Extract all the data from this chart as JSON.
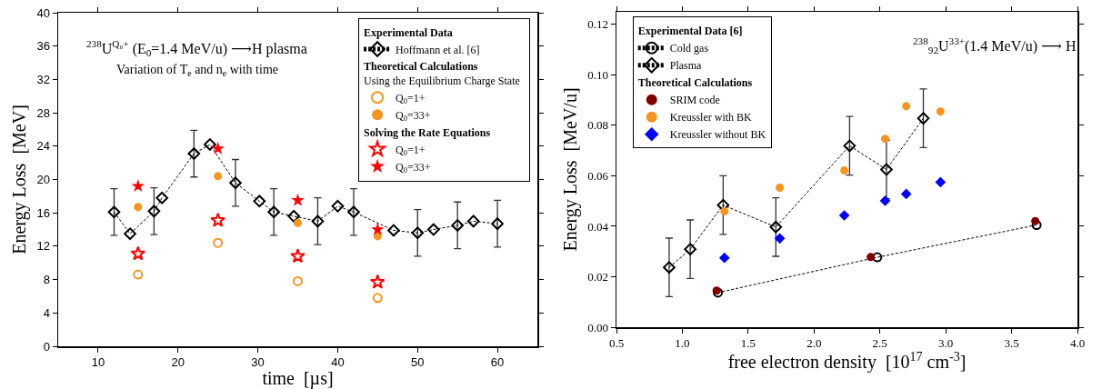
{
  "chart_data": [
    {
      "type": "scatter",
      "xlabel": "time  [µs]",
      "ylabel": "Energy Loss  [MeV]",
      "annotations": [
        "$^{238}$U$^{Q₀+}$ (E$_{0}$=1.4 MeV/u) ⟶H plasma",
        "Variation of T$_{e}$ and n$_{e}$ with time"
      ],
      "legend_title": [
        "Experimental Data",
        "Theoretical Calculations",
        "Using the Equilibrium Charge State",
        "Solving the Rate Equations"
      ],
      "xlim": [
        5,
        65
      ],
      "xticks": [
        10,
        20,
        30,
        40,
        50,
        60
      ],
      "ylim": [
        0,
        40
      ],
      "yticks": [
        0,
        4,
        8,
        12,
        16,
        20,
        24,
        28,
        32,
        36,
        40
      ],
      "grid": false,
      "legend": "top right",
      "series": [
        {
          "name": "Hoffmann et al. [6]",
          "type": "line",
          "marker": "diamond-open",
          "line_style": "dashed",
          "color": "#000000",
          "x": [
            12,
            14,
            17,
            18,
            22,
            24,
            27.2,
            30.2,
            32,
            34.5,
            37.5,
            40,
            42,
            47,
            50,
            52,
            55,
            57,
            60
          ],
          "values": [
            16.1,
            13.5,
            16.2,
            17.8,
            23.1,
            24.2,
            19.6,
            17.4,
            16.1,
            15.6,
            15.0,
            16.8,
            16.1,
            13.9,
            13.6,
            14.0,
            14.5,
            15.0,
            14.7
          ],
          "errors": [
            2.8,
            null,
            2.8,
            null,
            2.8,
            null,
            2.8,
            null,
            2.8,
            null,
            2.8,
            null,
            2.8,
            null,
            2.8,
            null,
            2.8,
            null,
            2.8
          ]
        },
        {
          "name": "Q$_{0}$=1+",
          "marker": "circle-open",
          "color": "#f7941d",
          "x": [
            15,
            25,
            35,
            45
          ],
          "values": [
            8.6,
            12.4,
            7.8,
            5.8
          ]
        },
        {
          "name": "Q$_{0}$=33+",
          "marker": "circle",
          "color": "#f7941d",
          "x": [
            15,
            25,
            35,
            45
          ],
          "values": [
            16.7,
            20.4,
            14.8,
            13.2
          ]
        },
        {
          "name": "Q$_{0}$=1+",
          "marker": "star-open",
          "color": "#ff0000",
          "x": [
            15,
            25,
            35,
            45
          ],
          "values": [
            11.1,
            15.1,
            10.8,
            7.7
          ]
        },
        {
          "name": "Q$_{0}$=33+",
          "marker": "star",
          "color": "#ff0000",
          "x": [
            15,
            25,
            35,
            45
          ],
          "values": [
            19.2,
            23.7,
            17.5,
            14.0
          ]
        }
      ]
    },
    {
      "type": "scatter",
      "xlabel": "free electron density  [10$^{17}$ cm$^{-3}$]",
      "ylabel": "Energy Loss  [MeV/u]",
      "annotations": [
        "$^{238}$$_{92}$U$^{33+}$(1.4 MeV/u) ⟶ H"
      ],
      "legend_title": [
        "Experimental Data [6]",
        "Theoretical Calculations"
      ],
      "xlim": [
        0.5,
        4.0
      ],
      "xticks": [
        {
          "value": 0.5,
          "label": "0.5"
        },
        {
          "value": 1,
          "label": "1.0"
        },
        {
          "value": 1.5,
          "label": "1.5"
        },
        {
          "value": 2,
          "label": "2.0"
        },
        {
          "value": 2.5,
          "label": "2.5"
        },
        {
          "value": 3,
          "label": "3.0"
        },
        {
          "value": 3.5,
          "label": "3.5"
        },
        {
          "value": 4,
          "label": "4.0"
        }
      ],
      "ylim": [
        0,
        0.125
      ],
      "yticks": [
        {
          "value": 0,
          "label": "0.00"
        },
        {
          "value": 0.02,
          "label": "0.02"
        },
        {
          "value": 0.04,
          "label": "0.04"
        },
        {
          "value": 0.06,
          "label": "0.06"
        },
        {
          "value": 0.08,
          "label": "0.08"
        },
        {
          "value": 0.1,
          "label": "0.10"
        },
        {
          "value": 0.12,
          "label": "0.12"
        }
      ],
      "grid": false,
      "legend": "top left",
      "series": [
        {
          "name": "Cold gas",
          "type": "line",
          "marker": "circle-open",
          "line_style": "dashed",
          "color": "#000000",
          "x": [
            1.27,
            2.48,
            3.69
          ],
          "values": [
            0.0137,
            0.0277,
            0.0405
          ]
        },
        {
          "name": "Plasma",
          "type": "line",
          "marker": "diamond-open",
          "line_style": "dashed",
          "color": "#000000",
          "x": [
            0.9,
            1.06,
            1.31,
            1.71,
            2.27,
            2.55,
            2.83
          ],
          "values": [
            0.0237,
            0.0309,
            0.0484,
            0.0397,
            0.0719,
            0.0625,
            0.0828
          ],
          "errors": [
            0.0116,
            0.0116,
            0.0116,
            0.0116,
            0.0116,
            0.0116,
            0.0116
          ]
        },
        {
          "name": "SRIM code",
          "marker": "circle",
          "color": "#800000",
          "x": [
            1.26,
            2.43,
            3.68
          ],
          "values": [
            0.0145,
            0.0278,
            0.0421
          ]
        },
        {
          "name": "Kreussler with BK",
          "marker": "circle",
          "color": "#f7941d",
          "x": [
            1.32,
            1.74,
            2.23,
            2.54,
            2.7,
            2.96
          ],
          "values": [
            0.0459,
            0.0553,
            0.0621,
            0.0747,
            0.0876,
            0.0855
          ]
        },
        {
          "name": "Kreussler without BK",
          "marker": "diamond",
          "color": "#0000ff",
          "x": [
            1.32,
            1.74,
            2.23,
            2.54,
            2.7,
            2.96
          ],
          "values": [
            0.0275,
            0.0352,
            0.0443,
            0.0501,
            0.0528,
            0.0575
          ]
        }
      ]
    }
  ]
}
